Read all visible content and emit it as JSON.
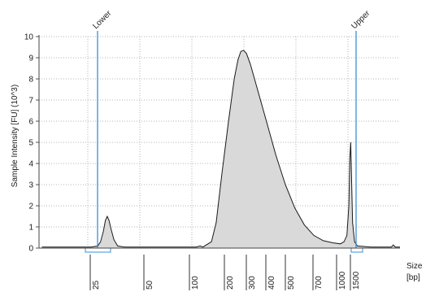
{
  "chart_data": {
    "type": "area",
    "ylabel": "Sample Intensity [FU] (10^3)",
    "x_unit_label": [
      "Size",
      "[bp]"
    ],
    "ylim": [
      0,
      10
    ],
    "yticks": [
      0,
      1,
      2,
      3,
      4,
      5,
      6,
      7,
      8,
      9,
      10
    ],
    "xtick_labels": [
      "25",
      "50",
      "100",
      "200",
      "300",
      "400",
      "500",
      "700",
      "1000",
      "1500"
    ],
    "markers": [
      {
        "label": "Lower",
        "size": "25"
      },
      {
        "label": "Upper",
        "size": "1500"
      }
    ],
    "grid": true,
    "fill_color": "#d9d9d9",
    "line_color": "#1a1a1a",
    "marker_color": "#3a8fd8",
    "series": [
      {
        "values": [
          [
            3,
            0.05
          ],
          [
            35,
            0.05
          ],
          [
            55,
            0.05
          ],
          [
            62,
            0.1
          ],
          [
            65,
            0.3
          ],
          [
            68,
            0.8
          ],
          [
            70,
            1.3
          ],
          [
            72,
            1.5
          ],
          [
            74,
            1.3
          ],
          [
            76,
            0.9
          ],
          [
            79,
            0.4
          ],
          [
            83,
            0.1
          ],
          [
            90,
            0.05
          ],
          [
            150,
            0.05
          ],
          [
            166,
            0.05
          ],
          [
            170,
            0.1
          ],
          [
            173,
            0.05
          ],
          [
            182,
            0.3
          ],
          [
            187,
            1.2
          ],
          [
            193,
            3.5
          ],
          [
            200,
            6.0
          ],
          [
            206,
            8.0
          ],
          [
            210,
            8.9
          ],
          [
            213,
            9.3
          ],
          [
            216,
            9.35
          ],
          [
            219,
            9.2
          ],
          [
            223,
            8.7
          ],
          [
            230,
            7.6
          ],
          [
            240,
            6.0
          ],
          [
            250,
            4.4
          ],
          [
            260,
            3.0
          ],
          [
            270,
            1.9
          ],
          [
            280,
            1.1
          ],
          [
            290,
            0.6
          ],
          [
            300,
            0.35
          ],
          [
            310,
            0.25
          ],
          [
            318,
            0.2
          ],
          [
            322,
            0.3
          ],
          [
            325,
            0.6
          ],
          [
            327,
            2.0
          ],
          [
            328,
            4.2
          ],
          [
            329,
            5.0
          ],
          [
            330,
            3.0
          ],
          [
            331,
            1.2
          ],
          [
            333,
            0.3
          ],
          [
            336,
            0.1
          ],
          [
            350,
            0.05
          ],
          [
            372,
            0.05
          ],
          [
            374,
            0.15
          ],
          [
            376,
            0.05
          ],
          [
            381,
            0.05
          ]
        ]
      }
    ]
  }
}
